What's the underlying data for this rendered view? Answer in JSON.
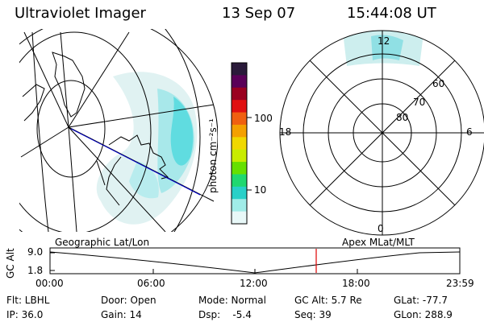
{
  "header": {
    "instrument": "Ultraviolet Imager",
    "date": "13 Sep 07",
    "time": "15:44:08 UT"
  },
  "colorbar": {
    "unit_label": "photon cm⁻²s⁻¹",
    "ticks": [
      "100",
      "10"
    ],
    "colors": [
      "#2a1a3a",
      "#5a0058",
      "#9a0020",
      "#e01010",
      "#f06010",
      "#f4a000",
      "#f0d800",
      "#c8ec00",
      "#66e000",
      "#20d870",
      "#28d0c8",
      "#a0ece8",
      "#e8f8f8"
    ]
  },
  "polar_plot": {
    "mlt_labels": {
      "top": "12",
      "left": "18",
      "right": "6",
      "bottom": "0"
    },
    "lat_labels": [
      "60",
      "70",
      "80"
    ]
  },
  "timeline": {
    "left_label": "Geographic Lat/Lon",
    "right_label": "Apex MLat/MLT",
    "y_axis_title": "GC Alt",
    "y_ticks": [
      "9.0",
      "1.8"
    ],
    "x_ticks": [
      "00:00",
      "06:00",
      "12:00",
      "18:00",
      "23:59"
    ],
    "marker_color": "#e00000"
  },
  "info": {
    "flt": "Flt: LBHL",
    "ip": "IP: 36.0",
    "door": "Door: Open",
    "gain": "Gain: 14",
    "mode": "Mode: Normal",
    "dsp": "Dsp:    -5.4",
    "gc_alt": "GC Alt: 5.7 Re",
    "seq": "Seq: 39",
    "glat": "GLat: -77.7",
    "glon": "GLon: 288.9"
  }
}
